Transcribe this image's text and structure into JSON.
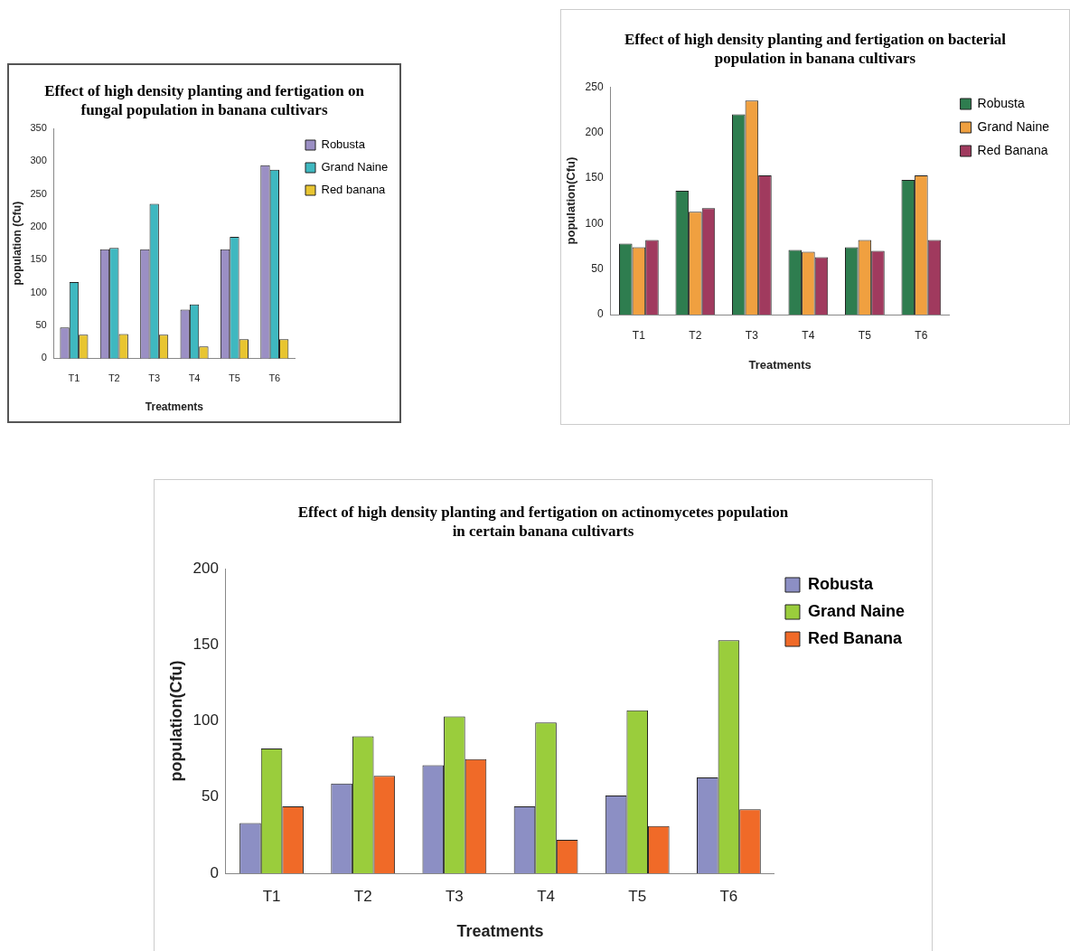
{
  "chart_data": [
    {
      "type": "bar",
      "title": "Effect of high density planting and fertigation on fungal population in banana cultivars",
      "xlabel": "Treatments",
      "ylabel": "population (Cfu)",
      "categories": [
        "T1",
        "T2",
        "T3",
        "T4",
        "T5",
        "T6"
      ],
      "ylim": [
        0,
        350
      ],
      "yticks": [
        0,
        50,
        100,
        150,
        200,
        250,
        300,
        350
      ],
      "grid": false,
      "legend": "right",
      "series": [
        {
          "name": "Robusta",
          "color": "#9b8fc4",
          "values": [
            47,
            166,
            166,
            74,
            166,
            294
          ]
        },
        {
          "name": "Grand Naine",
          "color": "#3fb8c0",
          "values": [
            116,
            168,
            235,
            82,
            185,
            287
          ]
        },
        {
          "name": "Red banana",
          "color": "#e8c531",
          "values": [
            36,
            37,
            36,
            18,
            29,
            29
          ]
        }
      ]
    },
    {
      "type": "bar",
      "title": "Effect of high density planting and fertigation on bacterial population in banana cultivars",
      "xlabel": "Treatments",
      "ylabel": "population(Cfu)",
      "categories": [
        "T1",
        "T2",
        "T3",
        "T4",
        "T5",
        "T6"
      ],
      "ylim": [
        0,
        250
      ],
      "yticks": [
        0,
        50,
        100,
        150,
        200,
        250
      ],
      "grid": false,
      "legend": "right",
      "series": [
        {
          "name": "Robusta",
          "color": "#2e7d4f",
          "values": [
            78,
            136,
            220,
            71,
            74,
            148
          ]
        },
        {
          "name": "Grand Naine",
          "color": "#f0a040",
          "values": [
            74,
            113,
            235,
            69,
            82,
            153
          ]
        },
        {
          "name": "Red Banana",
          "color": "#a03a5e",
          "values": [
            82,
            117,
            153,
            63,
            70,
            82
          ]
        }
      ]
    },
    {
      "type": "bar",
      "title": "Effect of high density planting and fertigation on actinomycetes population in certain banana cultivarts",
      "xlabel": "Treatments",
      "ylabel": "population(Cfu)",
      "categories": [
        "T1",
        "T2",
        "T3",
        "T4",
        "T5",
        "T6"
      ],
      "ylim": [
        0,
        200
      ],
      "yticks": [
        0,
        50,
        100,
        150,
        200
      ],
      "grid": false,
      "legend": "right",
      "series": [
        {
          "name": "Robusta",
          "color": "#8c8fc4",
          "values": [
            33,
            59,
            71,
            44,
            51,
            63
          ]
        },
        {
          "name": "Grand Naine",
          "color": "#9acd3c",
          "values": [
            82,
            90,
            103,
            99,
            107,
            153
          ]
        },
        {
          "name": "Red Banana",
          "color": "#f06a28",
          "values": [
            44,
            64,
            75,
            22,
            31,
            42
          ]
        }
      ]
    }
  ]
}
